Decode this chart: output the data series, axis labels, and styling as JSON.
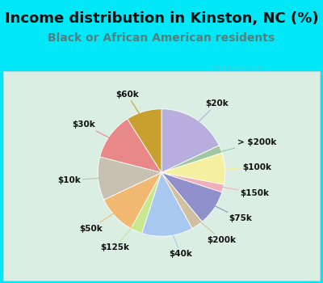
{
  "title": "Income distribution in Kinston, NC (%)",
  "subtitle": "Black or African American residents",
  "watermark": "City-Data.com",
  "slices": [
    {
      "label": "$20k",
      "value": 18,
      "color": "#b8aedd"
    },
    {
      "label": "> $200k",
      "value": 2,
      "color": "#a0c8a0"
    },
    {
      "label": "$100k",
      "value": 8,
      "color": "#f5f0a0"
    },
    {
      "label": "$150k",
      "value": 2,
      "color": "#f0b0b8"
    },
    {
      "label": "$75k",
      "value": 9,
      "color": "#9090cc"
    },
    {
      "label": "$200k",
      "value": 3,
      "color": "#d0c0a0"
    },
    {
      "label": "$40k",
      "value": 13,
      "color": "#a8c8f0"
    },
    {
      "label": "$125k",
      "value": 3,
      "color": "#c8e890"
    },
    {
      "label": "$50k",
      "value": 10,
      "color": "#f0b870"
    },
    {
      "label": "$10k",
      "value": 11,
      "color": "#c8c0b0"
    },
    {
      "label": "$30k",
      "value": 12,
      "color": "#e88888"
    },
    {
      "label": "$60k",
      "value": 9,
      "color": "#c8a030"
    }
  ],
  "bg_color": "#00e8f8",
  "chart_bg": "#e0f0e8",
  "title_color": "#101010",
  "subtitle_color": "#508080",
  "title_fontsize": 13,
  "subtitle_fontsize": 10,
  "label_fontsize": 7.5
}
